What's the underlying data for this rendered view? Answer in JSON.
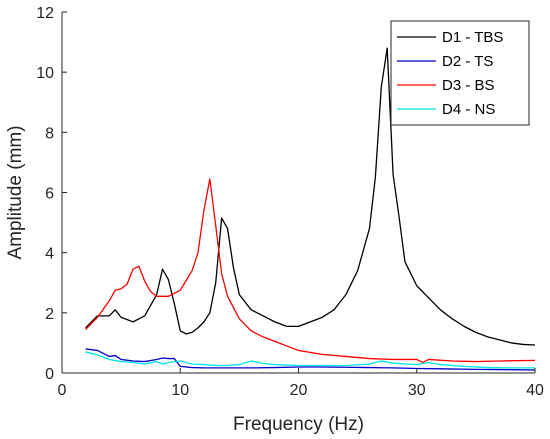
{
  "chart_data": {
    "type": "line",
    "title": "",
    "xlabel": "Frequency (Hz)",
    "ylabel": "Amplitude (mm)",
    "xlim": [
      0,
      40
    ],
    "ylim": [
      0,
      12
    ],
    "xticks": [
      0,
      10,
      20,
      30,
      40
    ],
    "yticks": [
      0,
      2,
      4,
      6,
      8,
      10,
      12
    ],
    "grid": false,
    "legend_position": "top-right",
    "series": [
      {
        "name": "D1 - TBS",
        "color": "#000000",
        "points": [
          [
            2,
            1.5
          ],
          [
            3,
            1.9
          ],
          [
            4,
            1.9
          ],
          [
            4.5,
            2.1
          ],
          [
            5,
            1.85
          ],
          [
            6,
            1.7
          ],
          [
            7,
            1.9
          ],
          [
            8,
            2.6
          ],
          [
            8.5,
            3.45
          ],
          [
            9,
            3.1
          ],
          [
            9.5,
            2.3
          ],
          [
            10,
            1.4
          ],
          [
            10.5,
            1.3
          ],
          [
            11,
            1.35
          ],
          [
            11.5,
            1.5
          ],
          [
            12,
            1.7
          ],
          [
            12.5,
            2.0
          ],
          [
            13,
            3.0
          ],
          [
            13.5,
            5.15
          ],
          [
            14,
            4.8
          ],
          [
            14.5,
            3.5
          ],
          [
            15,
            2.6
          ],
          [
            16,
            2.1
          ],
          [
            17,
            1.9
          ],
          [
            18,
            1.7
          ],
          [
            19,
            1.55
          ],
          [
            20,
            1.55
          ],
          [
            21,
            1.7
          ],
          [
            22,
            1.85
          ],
          [
            23,
            2.1
          ],
          [
            24,
            2.6
          ],
          [
            25,
            3.4
          ],
          [
            26,
            4.8
          ],
          [
            26.5,
            6.5
          ],
          [
            27,
            9.5
          ],
          [
            27.5,
            10.8
          ],
          [
            28,
            6.6
          ],
          [
            28.5,
            5.2
          ],
          [
            29,
            3.7
          ],
          [
            30,
            2.9
          ],
          [
            31,
            2.5
          ],
          [
            32,
            2.1
          ],
          [
            33,
            1.8
          ],
          [
            34,
            1.55
          ],
          [
            35,
            1.35
          ],
          [
            36,
            1.2
          ],
          [
            37,
            1.1
          ],
          [
            38,
            1.0
          ],
          [
            39,
            0.95
          ],
          [
            40,
            0.93
          ]
        ]
      },
      {
        "name": "D2 - TS",
        "color": "#0000cc",
        "points": [
          [
            2,
            0.8
          ],
          [
            3,
            0.75
          ],
          [
            4,
            0.55
          ],
          [
            4.5,
            0.58
          ],
          [
            5,
            0.45
          ],
          [
            6,
            0.4
          ],
          [
            7,
            0.38
          ],
          [
            8,
            0.45
          ],
          [
            8.5,
            0.5
          ],
          [
            9,
            0.48
          ],
          [
            9.5,
            0.48
          ],
          [
            10,
            0.22
          ],
          [
            11,
            0.18
          ],
          [
            12,
            0.17
          ],
          [
            14,
            0.17
          ],
          [
            16,
            0.17
          ],
          [
            18,
            0.18
          ],
          [
            20,
            0.2
          ],
          [
            22,
            0.2
          ],
          [
            24,
            0.19
          ],
          [
            26,
            0.18
          ],
          [
            28,
            0.17
          ],
          [
            30,
            0.15
          ],
          [
            32,
            0.14
          ],
          [
            35,
            0.12
          ],
          [
            38,
            0.11
          ],
          [
            40,
            0.1
          ]
        ]
      },
      {
        "name": "D3 - BS",
        "color": "#ff0000",
        "points": [
          [
            2,
            1.45
          ],
          [
            3,
            1.85
          ],
          [
            4,
            2.4
          ],
          [
            4.5,
            2.75
          ],
          [
            5,
            2.8
          ],
          [
            5.5,
            2.95
          ],
          [
            6,
            3.45
          ],
          [
            6.5,
            3.55
          ],
          [
            7,
            3.05
          ],
          [
            7.5,
            2.7
          ],
          [
            8,
            2.55
          ],
          [
            9,
            2.55
          ],
          [
            10,
            2.75
          ],
          [
            11,
            3.4
          ],
          [
            11.5,
            4.0
          ],
          [
            12,
            5.4
          ],
          [
            12.5,
            6.45
          ],
          [
            13,
            4.9
          ],
          [
            13.5,
            3.3
          ],
          [
            14,
            2.55
          ],
          [
            15,
            1.8
          ],
          [
            16,
            1.4
          ],
          [
            17,
            1.2
          ],
          [
            18,
            1.05
          ],
          [
            19,
            0.9
          ],
          [
            20,
            0.75
          ],
          [
            22,
            0.62
          ],
          [
            24,
            0.55
          ],
          [
            26,
            0.48
          ],
          [
            28,
            0.45
          ],
          [
            30,
            0.45
          ],
          [
            30.5,
            0.35
          ],
          [
            31,
            0.45
          ],
          [
            33,
            0.4
          ],
          [
            35,
            0.38
          ],
          [
            37,
            0.4
          ],
          [
            40,
            0.42
          ]
        ]
      },
      {
        "name": "D4 - NS",
        "color": "#00e5e5",
        "points": [
          [
            2,
            0.7
          ],
          [
            3,
            0.6
          ],
          [
            4,
            0.45
          ],
          [
            5,
            0.38
          ],
          [
            6,
            0.35
          ],
          [
            7,
            0.3
          ],
          [
            8,
            0.38
          ],
          [
            8.5,
            0.3
          ],
          [
            9,
            0.35
          ],
          [
            10,
            0.4
          ],
          [
            10.5,
            0.35
          ],
          [
            11,
            0.3
          ],
          [
            12,
            0.28
          ],
          [
            13,
            0.25
          ],
          [
            14,
            0.25
          ],
          [
            15,
            0.28
          ],
          [
            16,
            0.4
          ],
          [
            17,
            0.32
          ],
          [
            18,
            0.28
          ],
          [
            20,
            0.25
          ],
          [
            22,
            0.25
          ],
          [
            24,
            0.25
          ],
          [
            26,
            0.3
          ],
          [
            27,
            0.4
          ],
          [
            28,
            0.33
          ],
          [
            29,
            0.3
          ],
          [
            30,
            0.28
          ],
          [
            31,
            0.35
          ],
          [
            32,
            0.28
          ],
          [
            34,
            0.22
          ],
          [
            36,
            0.18
          ],
          [
            38,
            0.17
          ],
          [
            40,
            0.17
          ]
        ]
      }
    ]
  }
}
